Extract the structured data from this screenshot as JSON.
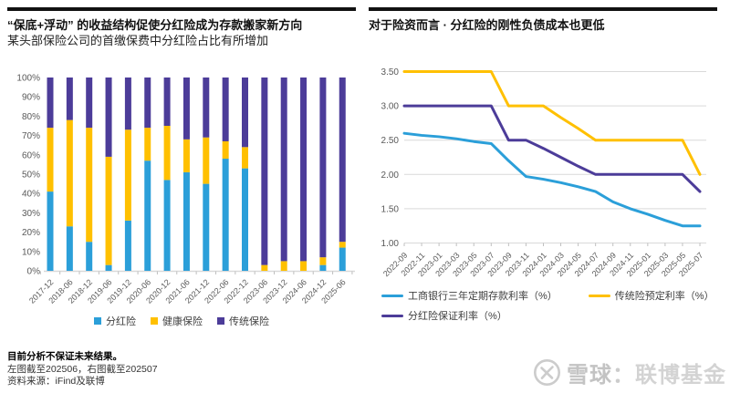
{
  "left_panel": {
    "title": "“保底+浮动” 的收益结构促使分红险成为存款搬家新方向",
    "subtitle": "某头部保险公司的首缴保费中分红险占比有所增加"
  },
  "right_panel": {
    "title": "对于险资而言 · 分红险的刚性负债成本也更低"
  },
  "footer": {
    "line1": "目前分析不保证未来结果。",
    "line2": "左图截至202506，右图截至202507",
    "line3": "资料来源：iFind及联博"
  },
  "watermark": {
    "icon": "xueqiu-snowball-icon",
    "text_primary": "雪球",
    "separator": "：",
    "text_secondary": "联博基金"
  },
  "colors": {
    "blue": "#2B9FD9",
    "yellow": "#FFC000",
    "purple": "#4C3C99",
    "grid": "#D9D9D9",
    "tick": "#BFBFBF",
    "axis_text": "#595959",
    "rule": "#111111"
  },
  "chart_data": [
    {
      "type": "bar",
      "stacked": true,
      "units": "percent",
      "title": "“保底+浮动” 的收益结构促使分红险成为存款搬家新方向",
      "subtitle": "某头部保险公司的首缴保费中分红险占比有所增加",
      "categories": [
        "2017-12",
        "2018-06",
        "2018-12",
        "2019-06",
        "2019-12",
        "2020-06",
        "2020-12",
        "2021-06",
        "2021-12",
        "2022-06",
        "2022-12",
        "2023-06",
        "2023-12",
        "2024-06",
        "2024-12",
        "2025-06"
      ],
      "series": [
        {
          "name": "分红险",
          "color": "#2B9FD9",
          "values": [
            41,
            23,
            15,
            3,
            26,
            57,
            47,
            51,
            45,
            58,
            53,
            0,
            0,
            0,
            3,
            12
          ]
        },
        {
          "name": "健康保险",
          "color": "#FFC000",
          "values": [
            33,
            55,
            59,
            56,
            47,
            17,
            28,
            17,
            24,
            9,
            11,
            3,
            5,
            5,
            4,
            3
          ]
        },
        {
          "name": "传统保险",
          "color": "#4C3C99",
          "values": [
            26,
            22,
            26,
            41,
            27,
            26,
            25,
            32,
            31,
            33,
            36,
            97,
            95,
            95,
            93,
            85
          ]
        }
      ],
      "ylim": [
        0,
        100
      ],
      "yticks": [
        "0%",
        "10%",
        "20%",
        "30%",
        "40%",
        "50%",
        "60%",
        "70%",
        "80%",
        "90%",
        "100%"
      ],
      "grid": "off",
      "legend_position": "bottom"
    },
    {
      "type": "line",
      "title": "对于险资而言 · 分红险的刚性负债成本也更低",
      "x": [
        "2022-09",
        "2022-11",
        "2023-01",
        "2023-03",
        "2023-05",
        "2023-07",
        "2023-09",
        "2023-11",
        "2024-01",
        "2024-03",
        "2024-05",
        "2024-07",
        "2024-09",
        "2024-11",
        "2025-01",
        "2025-03",
        "2025-05",
        "2025-07"
      ],
      "series": [
        {
          "name": "工商银行三年定期存款利率（%）",
          "color": "#2B9FD9",
          "values": [
            2.6,
            2.57,
            2.55,
            2.52,
            2.48,
            2.45,
            2.2,
            1.97,
            1.93,
            1.88,
            1.82,
            1.75,
            1.6,
            1.5,
            1.42,
            1.33,
            1.25,
            1.25
          ]
        },
        {
          "name": "传统险预定利率（%）",
          "color": "#FFC000",
          "values": [
            3.5,
            3.5,
            3.5,
            3.5,
            3.5,
            3.5,
            3.0,
            3.0,
            3.0,
            2.83,
            2.67,
            2.5,
            2.5,
            2.5,
            2.5,
            2.5,
            2.5,
            2.0
          ]
        },
        {
          "name": "分红险保证利率（%）",
          "color": "#4C3C99",
          "values": [
            3.0,
            3.0,
            3.0,
            3.0,
            3.0,
            3.0,
            2.5,
            2.5,
            2.38,
            2.25,
            2.12,
            2.0,
            2.0,
            2.0,
            2.0,
            2.0,
            2.0,
            1.75
          ]
        }
      ],
      "ylim": [
        1.0,
        3.5
      ],
      "yticks": [
        1.0,
        1.5,
        2.0,
        2.5,
        3.0,
        3.5
      ],
      "grid": "horizontal",
      "legend_position": "bottom"
    }
  ]
}
